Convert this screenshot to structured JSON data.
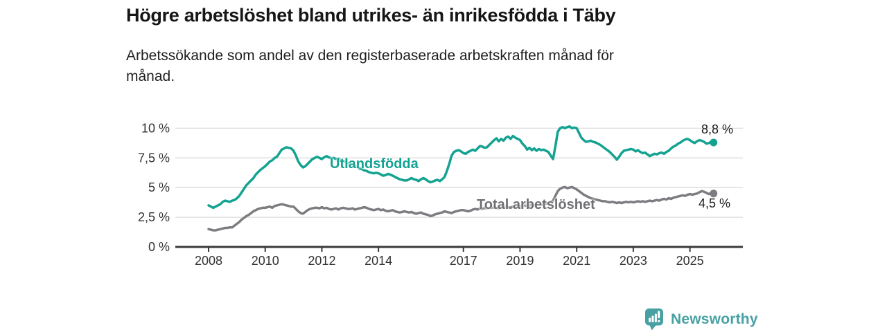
{
  "header": {
    "title": "Högre arbetslöshet bland utrikes- än inrikesfödda i Täby",
    "subtitle_line1": "Arbetssökande som andel av den registerbaserade arbetskraften månad för",
    "subtitle_line2": "månad."
  },
  "chart_data": {
    "type": "line",
    "title": "Högre arbetslöshet bland utrikes- än inrikesfödda i Täby",
    "subtitle": "Arbetssökande som andel av den registerbaserade arbetskraften månad för månad.",
    "x_unit": "year-month",
    "x_start": 2008.0,
    "points_per_year": 12,
    "x_end_label_period": "slutet av 2025",
    "ylim": [
      0,
      10.5
    ],
    "xlim": [
      2006.8,
      2026.9
    ],
    "grid": "horizontal-only",
    "legend_position": "inline-labels",
    "ytick_values": [
      0,
      2.5,
      5,
      7.5,
      10
    ],
    "ytick_labels": [
      "0 %",
      "2,5 %",
      "5 %",
      "7,5 %",
      "10 %"
    ],
    "xtick_values": [
      2008,
      2010,
      2012,
      2014,
      2017,
      2019,
      2021,
      2023,
      2025
    ],
    "xtick_labels": [
      "2008",
      "2010",
      "2012",
      "2014",
      "2017",
      "2019",
      "2021",
      "2023",
      "2025"
    ],
    "colors": {
      "utlandsfodda": "#14A291",
      "total": "#7C7C81",
      "total_label": "#6F6F74",
      "grid": "#DCDCDC",
      "axis": "#3A3A3A",
      "axis_text": "#333333",
      "annotation_text": "#1A1A1A"
    },
    "series": [
      {
        "name": "Utlandsfödda",
        "color": "#14A291",
        "end_label": "8,8 %",
        "end_value": 8.8,
        "values": [
          3.5,
          3.4,
          3.3,
          3.4,
          3.5,
          3.6,
          3.8,
          3.9,
          3.85,
          3.8,
          3.9,
          3.95,
          4.1,
          4.3,
          4.6,
          4.9,
          5.2,
          5.4,
          5.6,
          5.8,
          6.1,
          6.3,
          6.5,
          6.65,
          6.8,
          7.0,
          7.2,
          7.3,
          7.5,
          7.6,
          7.9,
          8.2,
          8.3,
          8.4,
          8.35,
          8.3,
          8.1,
          7.7,
          7.2,
          6.9,
          6.7,
          6.8,
          7.0,
          7.2,
          7.4,
          7.5,
          7.6,
          7.5,
          7.4,
          7.55,
          7.65,
          7.55,
          7.45,
          7.5,
          7.4,
          7.45,
          7.3,
          7.25,
          7.15,
          7.1,
          7.0,
          6.9,
          6.85,
          6.75,
          6.6,
          6.55,
          6.45,
          6.4,
          6.3,
          6.25,
          6.2,
          6.25,
          6.2,
          6.1,
          6.0,
          6.05,
          6.15,
          6.1,
          6.0,
          5.9,
          5.8,
          5.7,
          5.65,
          5.6,
          5.6,
          5.7,
          5.8,
          5.7,
          5.65,
          5.55,
          5.7,
          5.8,
          5.7,
          5.55,
          5.45,
          5.5,
          5.6,
          5.65,
          5.55,
          5.7,
          5.9,
          6.4,
          7.0,
          7.7,
          8.0,
          8.1,
          8.15,
          8.05,
          7.9,
          7.85,
          8.0,
          8.1,
          8.2,
          8.1,
          8.3,
          8.5,
          8.45,
          8.35,
          8.4,
          8.6,
          8.8,
          9.0,
          9.15,
          8.9,
          9.1,
          8.95,
          9.2,
          9.3,
          9.1,
          9.35,
          9.2,
          9.1,
          9.0,
          8.7,
          8.5,
          8.2,
          8.35,
          8.15,
          8.3,
          8.1,
          8.25,
          8.15,
          8.2,
          8.1,
          8.0,
          7.7,
          7.4,
          8.5,
          9.7,
          10.0,
          10.1,
          10.0,
          10.1,
          10.15,
          10.0,
          10.05,
          10.0,
          9.6,
          9.2,
          9.0,
          8.85,
          8.9,
          8.95,
          8.85,
          8.8,
          8.7,
          8.6,
          8.45,
          8.3,
          8.15,
          8.0,
          7.8,
          7.6,
          7.35,
          7.6,
          7.9,
          8.1,
          8.15,
          8.2,
          8.25,
          8.2,
          8.05,
          8.15,
          8.0,
          7.9,
          7.95,
          7.8,
          7.65,
          7.75,
          7.85,
          7.8,
          7.9,
          7.95,
          7.85,
          8.0,
          8.1,
          8.3,
          8.45,
          8.55,
          8.7,
          8.8,
          8.95,
          9.05,
          9.1,
          9.0,
          8.85,
          8.75,
          8.9,
          9.0,
          8.95,
          8.85,
          8.7,
          8.75,
          8.85,
          8.8
        ]
      },
      {
        "name": "Total arbetslöshet",
        "color": "#7C7C81",
        "end_label": "4,5 %",
        "end_value": 4.5,
        "values": [
          1.5,
          1.45,
          1.4,
          1.4,
          1.45,
          1.5,
          1.55,
          1.6,
          1.6,
          1.65,
          1.65,
          1.8,
          1.95,
          2.1,
          2.3,
          2.45,
          2.6,
          2.7,
          2.85,
          3.0,
          3.1,
          3.2,
          3.25,
          3.3,
          3.3,
          3.35,
          3.4,
          3.3,
          3.45,
          3.5,
          3.55,
          3.6,
          3.55,
          3.5,
          3.45,
          3.4,
          3.4,
          3.2,
          3.0,
          2.85,
          2.8,
          2.95,
          3.1,
          3.2,
          3.25,
          3.3,
          3.3,
          3.25,
          3.35,
          3.25,
          3.3,
          3.2,
          3.15,
          3.2,
          3.25,
          3.15,
          3.25,
          3.3,
          3.25,
          3.2,
          3.2,
          3.25,
          3.15,
          3.2,
          3.25,
          3.3,
          3.35,
          3.3,
          3.2,
          3.15,
          3.1,
          3.15,
          3.2,
          3.1,
          3.15,
          3.05,
          3.0,
          3.05,
          3.1,
          3.0,
          2.95,
          2.9,
          2.95,
          3.0,
          2.95,
          2.9,
          2.95,
          2.85,
          2.8,
          2.85,
          2.9,
          2.8,
          2.75,
          2.7,
          2.6,
          2.65,
          2.75,
          2.8,
          2.85,
          2.9,
          3.0,
          2.95,
          2.9,
          2.85,
          2.95,
          3.0,
          3.05,
          3.1,
          3.1,
          3.05,
          3.0,
          3.05,
          3.15,
          3.2,
          3.15,
          3.25,
          3.2,
          3.3,
          3.25,
          3.3,
          3.3,
          3.35,
          3.3,
          3.25,
          3.35,
          3.3,
          3.4,
          3.35,
          3.3,
          3.4,
          3.35,
          3.4,
          3.45,
          3.4,
          3.5,
          3.45,
          3.5,
          3.55,
          3.5,
          3.55,
          3.6,
          3.55,
          3.6,
          3.65,
          3.7,
          3.8,
          3.9,
          4.3,
          4.7,
          4.9,
          5.0,
          5.05,
          4.95,
          5.0,
          5.05,
          4.95,
          4.85,
          4.7,
          4.55,
          4.4,
          4.3,
          4.2,
          4.1,
          4.05,
          4.0,
          3.95,
          3.9,
          3.85,
          3.85,
          3.8,
          3.75,
          3.8,
          3.75,
          3.7,
          3.75,
          3.7,
          3.75,
          3.8,
          3.75,
          3.8,
          3.75,
          3.8,
          3.85,
          3.8,
          3.85,
          3.8,
          3.85,
          3.9,
          3.85,
          3.9,
          3.95,
          3.9,
          4.0,
          4.05,
          4.0,
          4.1,
          4.05,
          4.15,
          4.2,
          4.25,
          4.3,
          4.35,
          4.3,
          4.4,
          4.45,
          4.4,
          4.45,
          4.5,
          4.6,
          4.7,
          4.65,
          4.55,
          4.45,
          4.55,
          4.5
        ]
      }
    ]
  },
  "footer": {
    "brand": "Newsworthy",
    "logo_color": "#47A1A3",
    "logo_icon": "speech-bubble-bar-chart-exclamation"
  }
}
